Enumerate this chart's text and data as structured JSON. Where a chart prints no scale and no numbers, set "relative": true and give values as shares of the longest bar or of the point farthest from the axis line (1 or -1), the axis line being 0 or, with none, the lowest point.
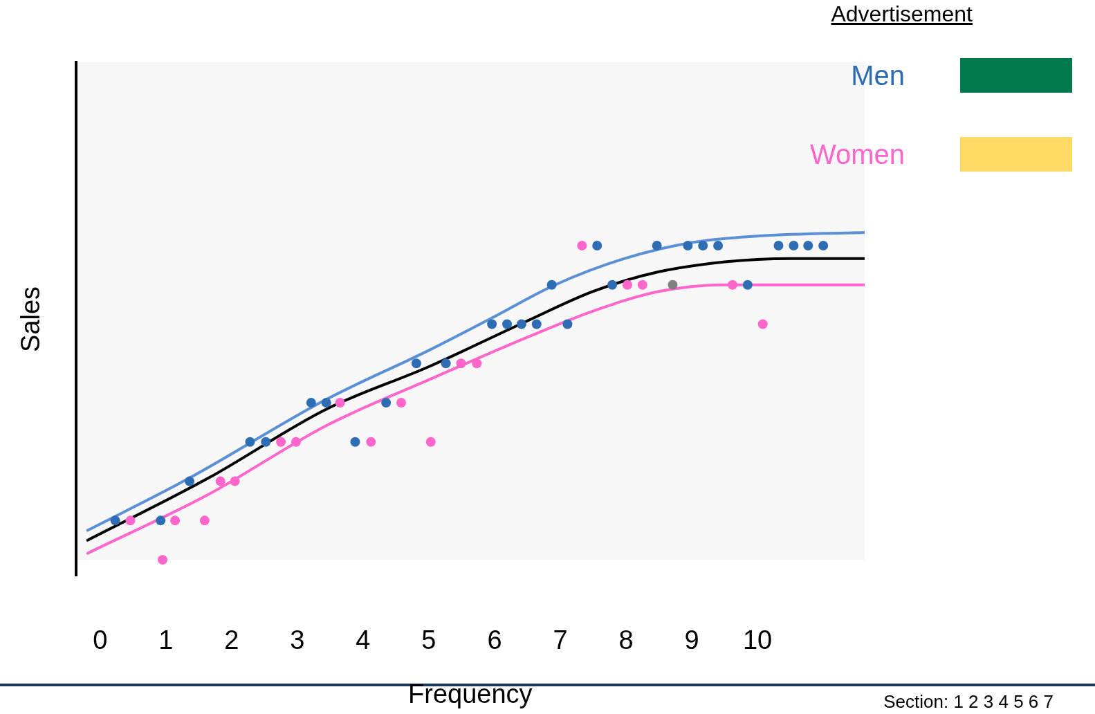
{
  "chart_data": {
    "type": "scatter",
    "relative": true,
    "xlabel": "Frequency",
    "ylabel": "Sales",
    "legend_title": "Advertisement",
    "legend": "top right",
    "marker": "circle",
    "xlim": [
      -0.37,
      11.63
    ],
    "xticks": [
      0,
      1,
      2,
      3,
      4,
      5,
      6,
      7,
      8,
      9,
      10
    ],
    "annotations": [
      "Section: 1 2 3 4 5 6 7"
    ],
    "series": [
      {
        "name": "Men",
        "color": "#2e6db4",
        "x": [
          0.23,
          0.92,
          1.36,
          2.28,
          2.52,
          3.21,
          3.44,
          3.88,
          4.35,
          4.81,
          5.26,
          5.96,
          6.19,
          6.41,
          6.64,
          6.87,
          7.11,
          7.56,
          7.79,
          8.47,
          8.94,
          9.17,
          9.4,
          9.85,
          10.32,
          10.55,
          10.77,
          11.0
        ],
        "values": [
          0.12,
          0.12,
          0.24,
          0.36,
          0.36,
          0.48,
          0.48,
          0.36,
          0.48,
          0.6,
          0.6,
          0.72,
          0.72,
          0.72,
          0.72,
          0.84,
          0.72,
          0.96,
          0.84,
          0.96,
          0.96,
          0.96,
          0.96,
          0.84,
          0.96,
          0.96,
          0.96,
          0.96
        ]
      },
      {
        "name": "Women",
        "color": "#ff66cc",
        "x": [
          0.46,
          0.95,
          1.14,
          1.59,
          1.83,
          2.05,
          2.75,
          2.98,
          3.65,
          4.12,
          4.58,
          5.03,
          5.49,
          5.73,
          7.33,
          8.02,
          8.25,
          9.62,
          10.08
        ],
        "values": [
          0.12,
          0,
          0.12,
          0.12,
          0.24,
          0.24,
          0.36,
          0.36,
          0.48,
          0.36,
          0.48,
          0.36,
          0.6,
          0.6,
          0.96,
          0.84,
          0.84,
          0.84,
          0.72
        ]
      },
      {
        "color": "#808080",
        "x": [
          8.71
        ],
        "values": [
          0.84
        ]
      },
      {
        "type": "line",
        "marker": "none",
        "color": "#5b8fd6",
        "x": [
          -0.19,
          1.36,
          3.44,
          5,
          5.97,
          6.92,
          7.97,
          9.02,
          10.07,
          11.63
        ],
        "values": [
          0.09,
          0.25,
          0.49,
          0.64,
          0.74,
          0.84,
          0.92,
          0.97,
          0.99,
          1
        ]
      },
      {
        "type": "line",
        "marker": "none",
        "color": "#000000",
        "x": [
          -0.19,
          1.65,
          3.44,
          5,
          6.5,
          7.5,
          8.5,
          9.5,
          10.5,
          11.63
        ],
        "values": [
          0.06,
          0.25,
          0.46,
          0.59,
          0.73,
          0.82,
          0.88,
          0.91,
          0.92,
          0.92
        ]
      },
      {
        "type": "line",
        "marker": "none",
        "color": "#ff66cc",
        "x": [
          -0.19,
          1.65,
          3.44,
          5,
          6.5,
          7.5,
          8.5,
          9.5,
          10.5,
          11.63
        ],
        "values": [
          0.02,
          0.2,
          0.41,
          0.55,
          0.68,
          0.76,
          0.82,
          0.84,
          0.84,
          0.84
        ]
      }
    ]
  }
}
